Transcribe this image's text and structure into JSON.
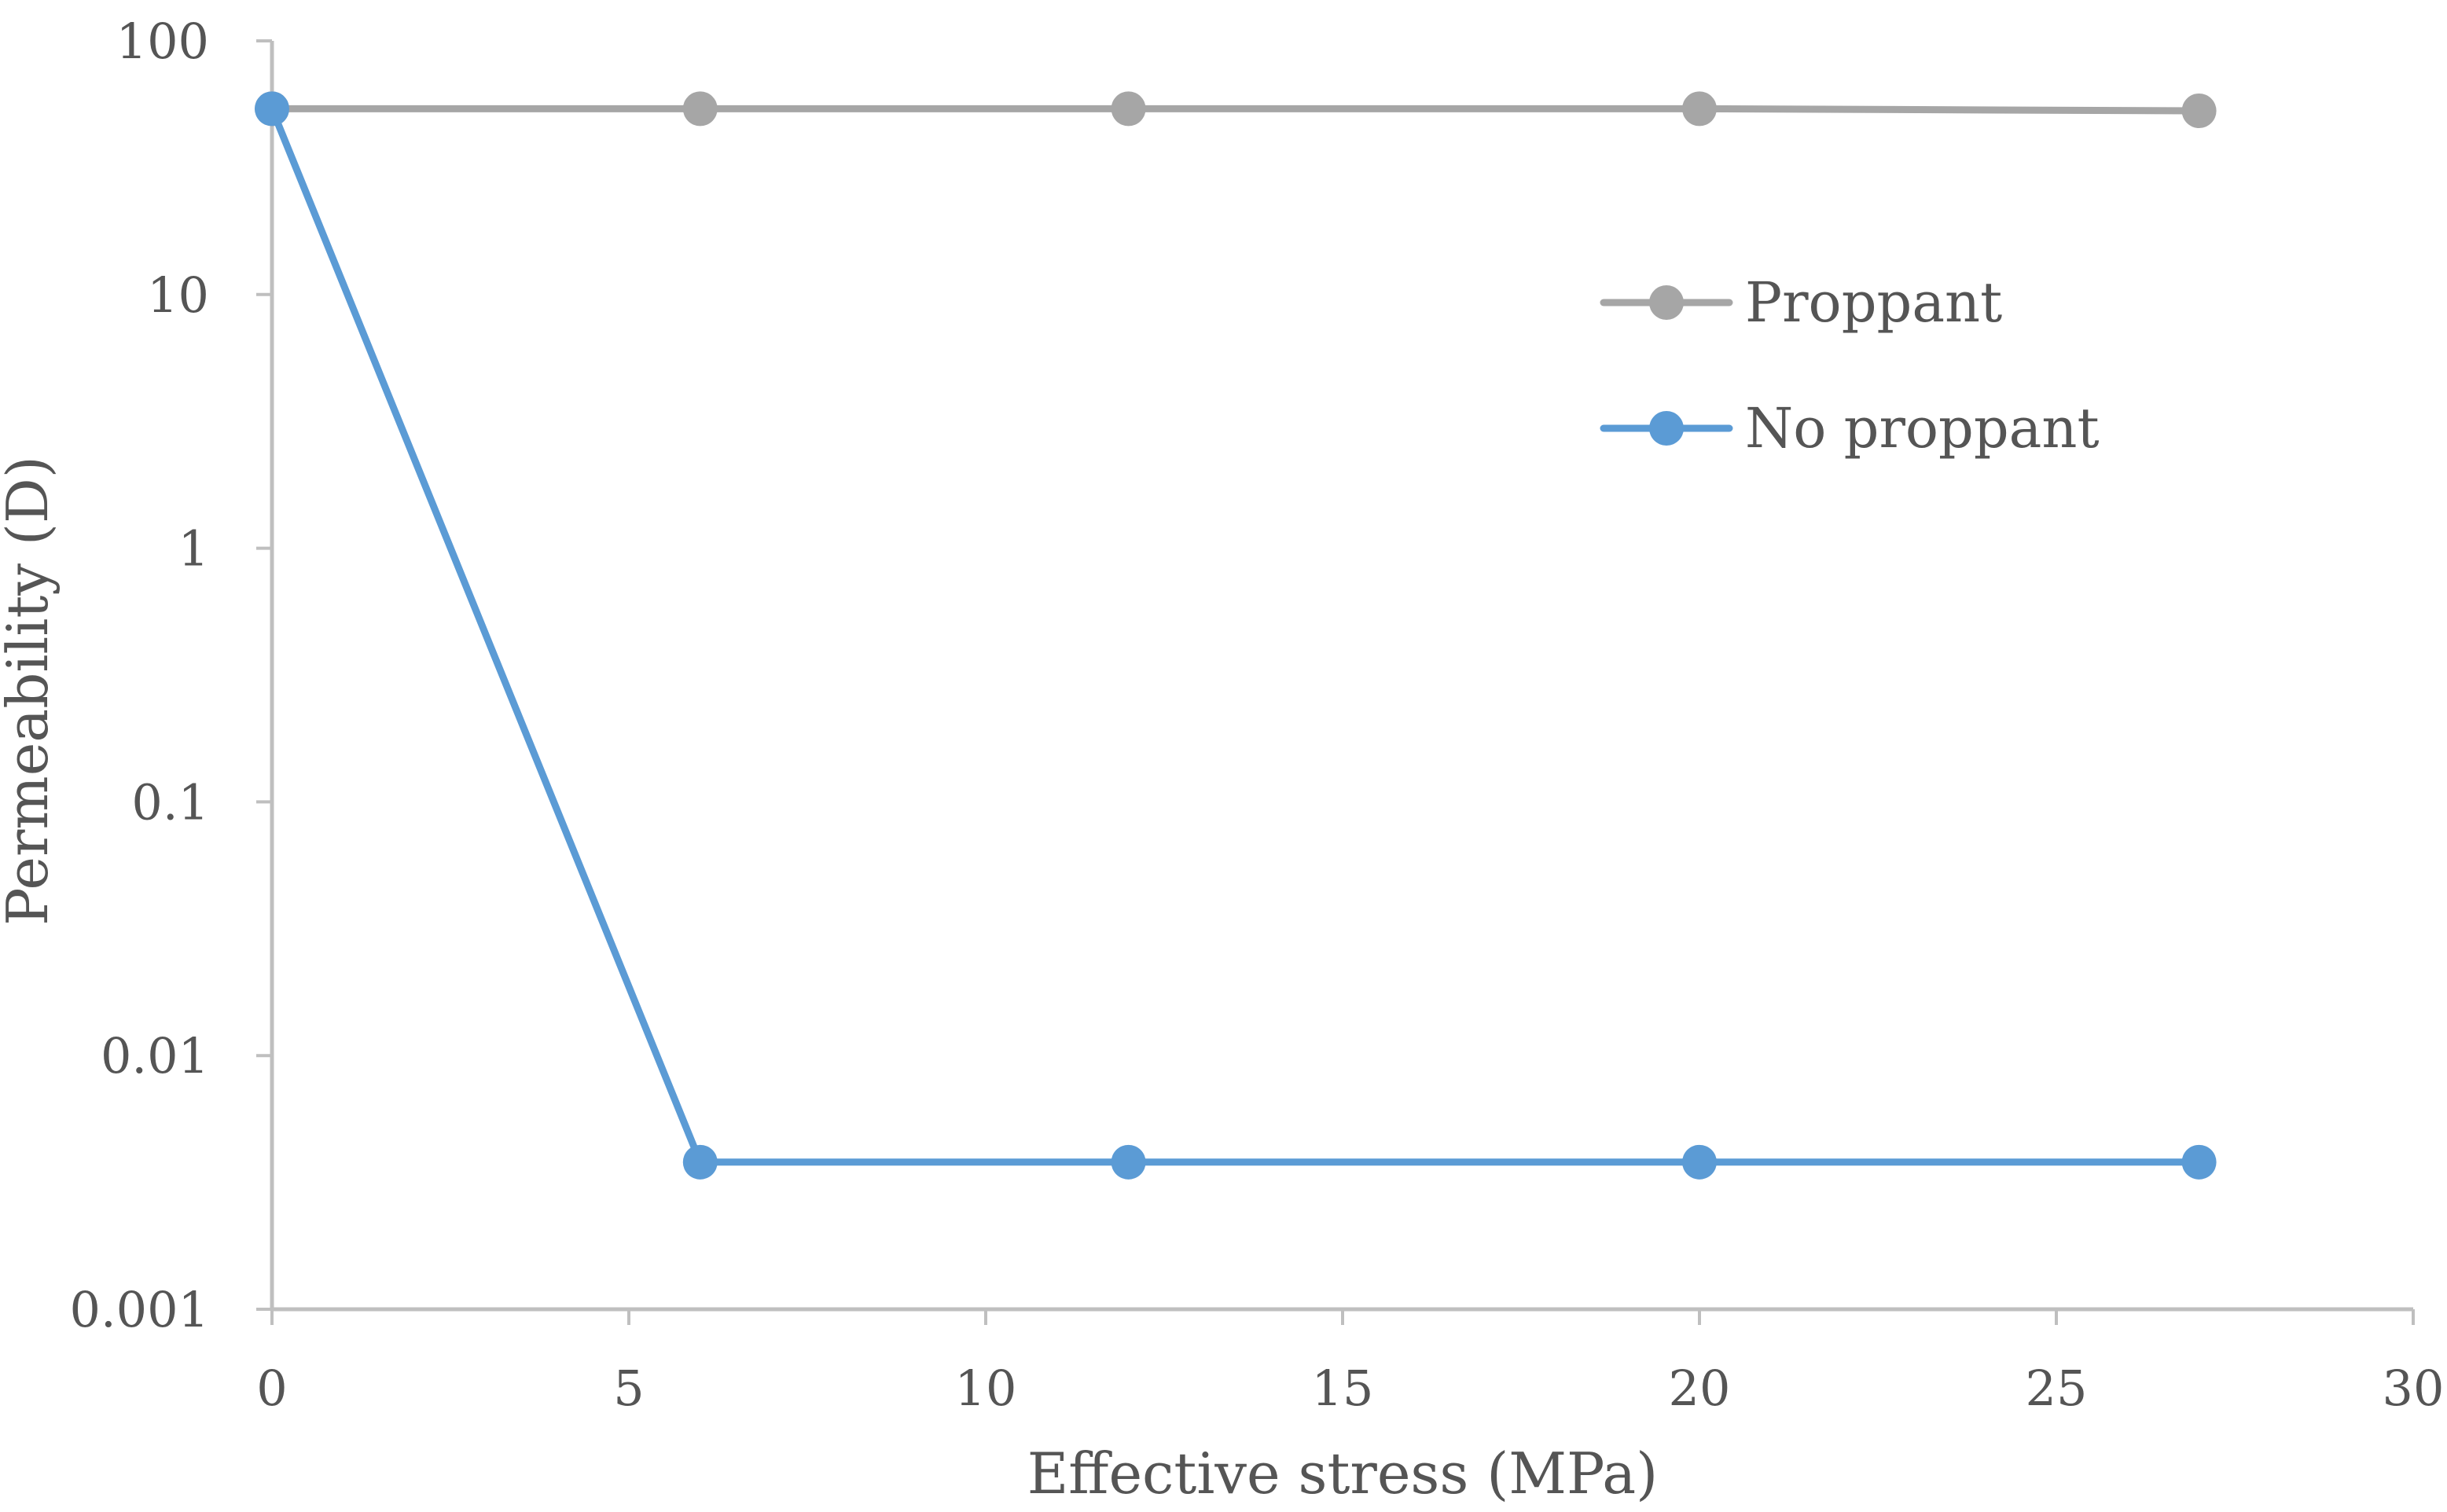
{
  "chart_data": {
    "type": "line",
    "title": "",
    "xlabel": "Effective stress (MPa)",
    "ylabel": "Permeability (D)",
    "xlim": [
      0,
      30
    ],
    "ylim": [
      0.001,
      100
    ],
    "yscale": "log",
    "x_ticks": [
      0,
      5,
      10,
      15,
      20,
      25,
      30
    ],
    "x_tick_labels": [
      "0",
      "5",
      "10",
      "15",
      "20",
      "25",
      "30"
    ],
    "y_ticks": [
      0.001,
      0.01,
      0.1,
      1,
      10,
      100
    ],
    "y_tick_labels": [
      "0.001",
      "0.01",
      "0.1",
      "1",
      "10",
      "100"
    ],
    "grid": false,
    "legend_position": "center-right",
    "series": [
      {
        "name": "Proppant",
        "color": "#a6a6a6",
        "x": [
          0,
          6,
          12,
          20,
          27
        ],
        "values": [
          54,
          54,
          54,
          54,
          53
        ]
      },
      {
        "name": "No proppant",
        "color": "#5b9bd5",
        "x": [
          0,
          6,
          12,
          20,
          27
        ],
        "values": [
          54,
          0.0038,
          0.0038,
          0.0038,
          0.0038
        ]
      }
    ]
  }
}
